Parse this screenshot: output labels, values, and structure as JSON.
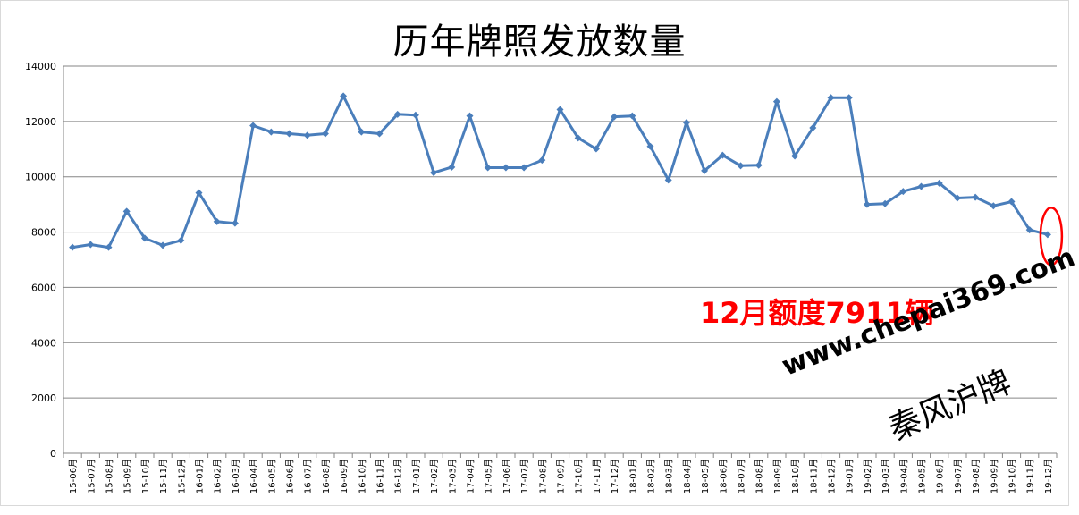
{
  "chart_data": {
    "type": "line",
    "title": "历年牌照发放数量",
    "xlabel": "",
    "ylabel": "",
    "ylim": [
      0,
      14000
    ],
    "yticks": [
      0,
      2000,
      4000,
      6000,
      8000,
      10000,
      12000,
      14000
    ],
    "grid": true,
    "legend": "none",
    "categories": [
      "15-06月",
      "15-07月",
      "15-08月",
      "15-09月",
      "15-10月",
      "15-11月",
      "15-12月",
      "16-01月",
      "16-02月",
      "16-03月",
      "16-04月",
      "16-05月",
      "16-06月",
      "16-07月",
      "16-08月",
      "16-09月",
      "16-10月",
      "16-11月",
      "16-12月",
      "17-01月",
      "17-02月",
      "17-03月",
      "17-04月",
      "17-05月",
      "17-06月",
      "17-07月",
      "17-08月",
      "17-09月",
      "17-10月",
      "17-11月",
      "17-12月",
      "18-01月",
      "18-02月",
      "18-03月",
      "18-04月",
      "18-05月",
      "18-06月",
      "18-07月",
      "18-08月",
      "18-09月",
      "18-10月",
      "18-11月",
      "18-12月",
      "19-01月",
      "19-02月",
      "19-03月",
      "19-04月",
      "19-05月",
      "19-06月",
      "19-07月",
      "19-08月",
      "19-09月",
      "19-10月",
      "19-11月",
      "19-12月"
    ],
    "series": [
      {
        "values": [
          7450,
          7550,
          7450,
          8750,
          7780,
          7520,
          7700,
          9420,
          8380,
          8320,
          11850,
          11620,
          11560,
          11500,
          11560,
          12920,
          11620,
          11560,
          12260,
          12230,
          10150,
          10350,
          12200,
          10330,
          10330,
          10330,
          10600,
          12430,
          11400,
          11010,
          12170,
          12200,
          11100,
          9880,
          11960,
          10220,
          10780,
          10400,
          10420,
          12720,
          10750,
          11770,
          12860,
          12860,
          9000,
          9030,
          9470,
          9650,
          9770,
          9230,
          9260,
          8950,
          9100,
          8080,
          7911
        ],
        "color": "#4a7ebb"
      }
    ],
    "highlight": {
      "index": 54,
      "color": "#ff0000"
    },
    "annotation": "12月额度7911辆"
  },
  "watermark": {
    "url": "www.chepai369.com",
    "name": "秦风沪牌"
  }
}
